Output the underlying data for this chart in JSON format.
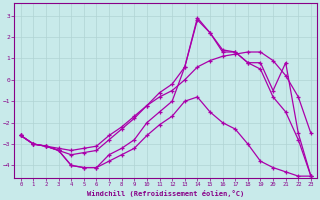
{
  "xlabel": "Windchill (Refroidissement éolien,°C)",
  "xlim": [
    -0.5,
    23.5
  ],
  "ylim": [
    -4.6,
    3.6
  ],
  "yticks": [
    3,
    2,
    1,
    0,
    -1,
    -2,
    -3,
    -4
  ],
  "xticks": [
    0,
    1,
    2,
    3,
    4,
    5,
    6,
    7,
    8,
    9,
    10,
    11,
    12,
    13,
    14,
    15,
    16,
    17,
    18,
    19,
    20,
    21,
    22,
    23
  ],
  "bg_color": "#c8eaea",
  "line_color": "#aa00aa",
  "grid_color": "#b0d4d4",
  "lines": [
    {
      "x": [
        0,
        1,
        2,
        3,
        4,
        5,
        6,
        7,
        8,
        9,
        10,
        11,
        12,
        13,
        14,
        15,
        16,
        17,
        18,
        19,
        20,
        21,
        22,
        23
      ],
      "y": [
        -2.6,
        -3.0,
        -3.1,
        -3.3,
        -3.5,
        -3.4,
        -3.3,
        -2.8,
        -2.3,
        -1.8,
        -1.2,
        -0.6,
        -0.2,
        0.6,
        2.8,
        2.2,
        1.3,
        1.3,
        0.8,
        0.8,
        -0.5,
        0.8,
        -2.5,
        -4.5
      ]
    },
    {
      "x": [
        0,
        1,
        2,
        3,
        4,
        5,
        6,
        7,
        8,
        9,
        10,
        11,
        12,
        13,
        14,
        15,
        16,
        17,
        18,
        19,
        20,
        21,
        22,
        23
      ],
      "y": [
        -2.6,
        -3.0,
        -3.1,
        -3.2,
        -3.3,
        -3.2,
        -3.1,
        -2.6,
        -2.2,
        -1.7,
        -1.2,
        -0.8,
        -0.5,
        0.0,
        0.6,
        0.9,
        1.1,
        1.2,
        1.3,
        1.3,
        0.9,
        0.2,
        -0.8,
        -2.5
      ]
    },
    {
      "x": [
        0,
        1,
        2,
        3,
        4,
        5,
        6,
        7,
        8,
        9,
        10,
        11,
        12,
        13,
        14,
        15,
        16,
        17,
        18,
        19,
        20,
        21,
        22,
        23
      ],
      "y": [
        -2.6,
        -3.0,
        -3.1,
        -3.3,
        -4.0,
        -4.1,
        -4.1,
        -3.8,
        -3.5,
        -3.2,
        -2.6,
        -2.1,
        -1.7,
        -1.0,
        -0.8,
        -1.5,
        -2.0,
        -2.3,
        -3.0,
        -3.8,
        -4.1,
        -4.3,
        -4.5,
        -4.5
      ]
    },
    {
      "x": [
        0,
        1,
        2,
        3,
        4,
        5,
        6,
        7,
        8,
        9,
        10,
        11,
        12,
        13,
        14,
        15,
        16,
        17,
        18,
        19,
        20,
        21,
        22,
        23
      ],
      "y": [
        -2.6,
        -3.0,
        -3.1,
        -3.3,
        -4.0,
        -4.1,
        -4.1,
        -3.5,
        -3.2,
        -2.8,
        -2.0,
        -1.5,
        -1.0,
        0.6,
        2.9,
        2.2,
        1.4,
        1.3,
        0.8,
        0.5,
        -0.8,
        -1.5,
        -2.8,
        -4.5
      ]
    }
  ]
}
